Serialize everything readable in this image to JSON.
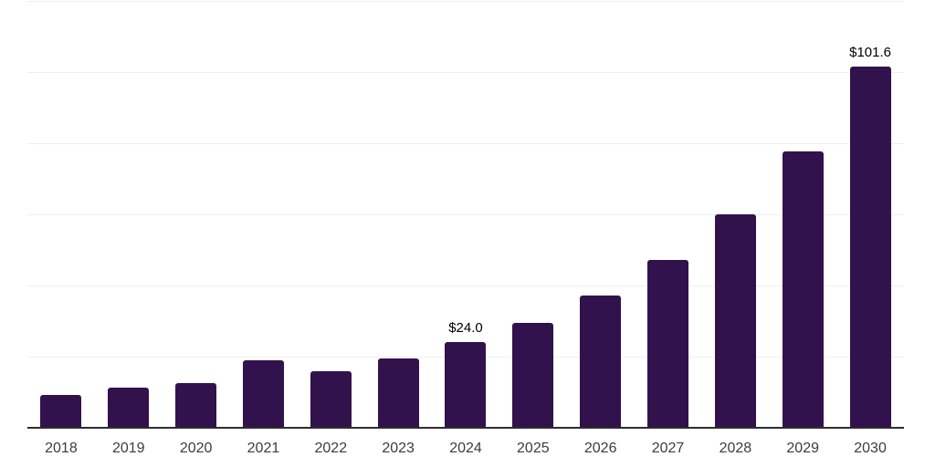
{
  "chart_data": {
    "type": "bar",
    "title": "",
    "xlabel": "",
    "ylabel": "",
    "categories": [
      "2018",
      "2019",
      "2020",
      "2021",
      "2022",
      "2023",
      "2024",
      "2025",
      "2026",
      "2027",
      "2028",
      "2029",
      "2030"
    ],
    "values": [
      9.2,
      11.4,
      12.5,
      19.1,
      15.8,
      19.4,
      24.0,
      29.6,
      37.3,
      47.2,
      60.0,
      77.8,
      101.6
    ],
    "bar_labels": [
      "",
      "",
      "",
      "",
      "",
      "",
      "$24.0",
      "",
      "",
      "",
      "",
      "",
      "$101.6"
    ],
    "ylim": [
      0,
      120
    ],
    "grid_step": 20,
    "grid": "horizontal only, no y-axis tick labels",
    "legend": "none",
    "colors": {
      "bar": "#32124c",
      "axis_line": "#2e2e2e",
      "gridline": "#efefef",
      "tick_label": "#3c3c3c",
      "data_label": "#000000",
      "background": "#ffffff"
    }
  }
}
